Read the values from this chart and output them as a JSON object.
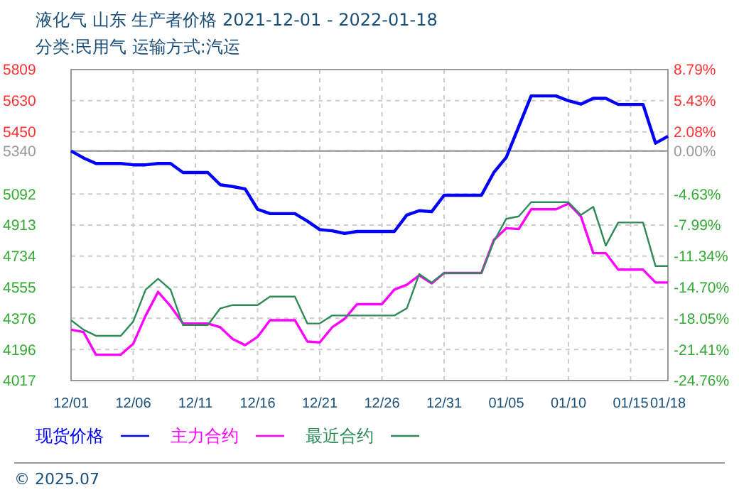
{
  "chart_data": {
    "type": "line",
    "title": "液化气 山东 生产者价格 2021-12-01 - 2022-01-18",
    "subtitle": "分类:民用气 运输方式:汽运",
    "x": [
      "2021-12-01",
      "2021-12-02",
      "2021-12-03",
      "2021-12-04",
      "2021-12-05",
      "2021-12-06",
      "2021-12-07",
      "2021-12-08",
      "2021-12-09",
      "2021-12-10",
      "2021-12-11",
      "2021-12-12",
      "2021-12-13",
      "2021-12-14",
      "2021-12-15",
      "2021-12-16",
      "2021-12-17",
      "2021-12-18",
      "2021-12-19",
      "2021-12-20",
      "2021-12-21",
      "2021-12-22",
      "2021-12-23",
      "2021-12-24",
      "2021-12-25",
      "2021-12-26",
      "2021-12-27",
      "2021-12-28",
      "2021-12-29",
      "2021-12-30",
      "2021-12-31",
      "2022-01-01",
      "2022-01-02",
      "2022-01-03",
      "2022-01-04",
      "2022-01-05",
      "2022-01-06",
      "2022-01-07",
      "2022-01-08",
      "2022-01-09",
      "2022-01-10",
      "2022-01-11",
      "2022-01-12",
      "2022-01-13",
      "2022-01-14",
      "2022-01-15",
      "2022-01-16",
      "2022-01-17",
      "2022-01-18"
    ],
    "series": [
      {
        "name": "现货价格",
        "color": "#0000ff",
        "values": [
          5340,
          5300,
          5268,
          5268,
          5268,
          5260,
          5260,
          5268,
          5268,
          5216,
          5216,
          5216,
          5145,
          5135,
          5121,
          5004,
          4979,
          4979,
          4979,
          4936,
          4887,
          4880,
          4865,
          4876,
          4876,
          4876,
          4876,
          4971,
          4996,
          4990,
          5085,
          5085,
          5085,
          5085,
          5216,
          5303,
          5480,
          5657,
          5657,
          5657,
          5629,
          5610,
          5643,
          5643,
          5608,
          5608,
          5608,
          5385,
          5425
        ]
      },
      {
        "name": "主力合约",
        "color": "#ff00ff",
        "values": [
          4310,
          4297,
          4166,
          4166,
          4166,
          4229,
          4392,
          4528,
          4446,
          4346,
          4346,
          4346,
          4324,
          4256,
          4221,
          4269,
          4365,
          4365,
          4365,
          4242,
          4237,
          4324,
          4373,
          4457,
          4457,
          4457,
          4541,
          4569,
          4623,
          4577,
          4637,
          4637,
          4637,
          4637,
          4827,
          4895,
          4890,
          5004,
          5004,
          5004,
          5037,
          4963,
          4751,
          4751,
          4656,
          4656,
          4656,
          4582,
          4582
        ]
      },
      {
        "name": "最近合约",
        "color": "#2e8b57",
        "values": [
          4365,
          4310,
          4275,
          4275,
          4275,
          4357,
          4541,
          4604,
          4541,
          4337,
          4337,
          4337,
          4433,
          4452,
          4452,
          4452,
          4501,
          4501,
          4501,
          4346,
          4346,
          4392,
          4392,
          4392,
          4392,
          4392,
          4392,
          4433,
          4631,
          4582,
          4637,
          4637,
          4637,
          4637,
          4819,
          4949,
          4963,
          5045,
          5045,
          5045,
          5045,
          4971,
          5018,
          4795,
          4928,
          4928,
          4928,
          4677,
          4677
        ]
      }
    ],
    "xlim": [
      "2021-12-01",
      "2022-01-18"
    ],
    "xticks": [
      {
        "value": "2021-12-01",
        "label": "12/01"
      },
      {
        "value": "2021-12-06",
        "label": "12/06"
      },
      {
        "value": "2021-12-11",
        "label": "12/11"
      },
      {
        "value": "2021-12-16",
        "label": "12/16"
      },
      {
        "value": "2021-12-21",
        "label": "12/21"
      },
      {
        "value": "2021-12-26",
        "label": "12/26"
      },
      {
        "value": "2021-12-31",
        "label": "12/31"
      },
      {
        "value": "2022-01-05",
        "label": "01/05"
      },
      {
        "value": "2022-01-10",
        "label": "01/10"
      },
      {
        "value": "2022-01-15",
        "label": "01/15"
      },
      {
        "value": "2022-01-18",
        "label": "01/18"
      }
    ],
    "ylim": [
      4017,
      5809
    ],
    "yticks": [
      4017,
      4196,
      4376,
      4555,
      4734,
      4913,
      5092,
      5340,
      5450,
      5630,
      5809
    ],
    "y2lim": [
      -24.76,
      8.79
    ],
    "y2ticks": [
      {
        "value": -24.76,
        "label": "-24.76%"
      },
      {
        "value": -21.41,
        "label": "-21.41%"
      },
      {
        "value": -18.05,
        "label": "-18.05%"
      },
      {
        "value": -14.7,
        "label": "-14.70%"
      },
      {
        "value": -11.34,
        "label": "-11.34%"
      },
      {
        "value": -7.99,
        "label": "-7.99%"
      },
      {
        "value": -4.63,
        "label": "-4.63%"
      },
      {
        "value": 0,
        "label": "0.00%"
      },
      {
        "value": 2.08,
        "label": "2.08%"
      },
      {
        "value": 5.43,
        "label": "5.43%"
      },
      {
        "value": 8.79,
        "label": "8.79%"
      }
    ],
    "ref_lines": [
      {
        "axis": "y",
        "value": 5340,
        "color": "#999999"
      }
    ],
    "grid": true,
    "legend": "bottom",
    "line_style": "solid",
    "annotations": [
      "© 2025.07"
    ]
  }
}
